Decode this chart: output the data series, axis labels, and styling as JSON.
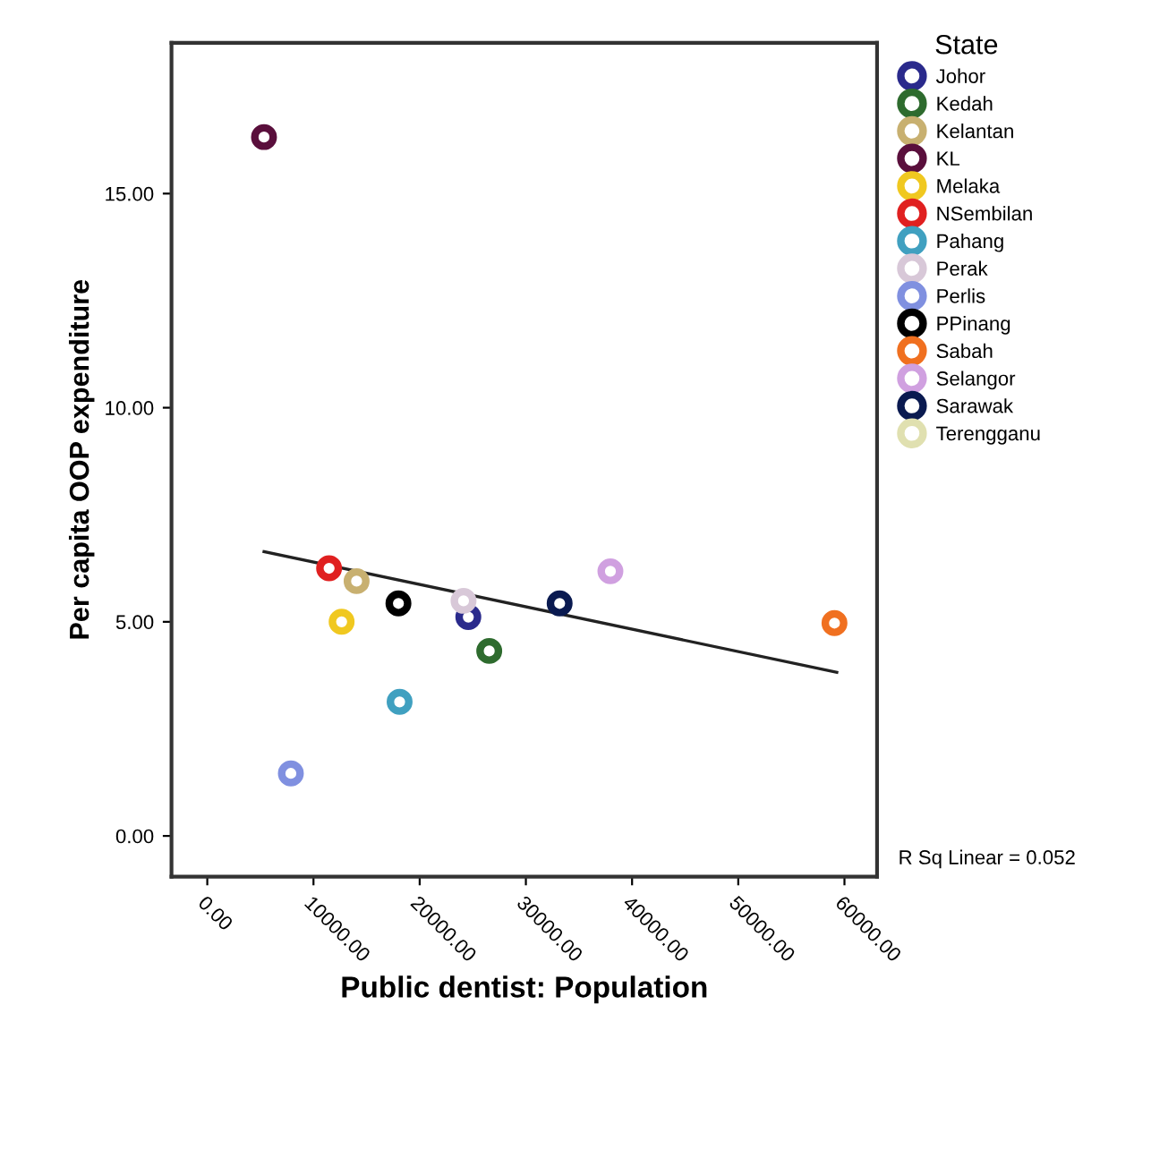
{
  "chart_data": {
    "type": "scatter",
    "xlabel": "Public dentist: Population",
    "ylabel": "Per capita OOP expenditure",
    "legend_title": "State",
    "xlim": [
      -3370,
      63070
    ],
    "ylim": [
      -0.95,
      18.52
    ],
    "xticks": [
      {
        "value": 0,
        "label": "0.00"
      },
      {
        "value": 10000,
        "label": "10000.00"
      },
      {
        "value": 20000,
        "label": "20000.00"
      },
      {
        "value": 30000,
        "label": "30000.00"
      },
      {
        "value": 40000,
        "label": "40000.00"
      },
      {
        "value": 50000,
        "label": "50000.00"
      },
      {
        "value": 60000,
        "label": "60000.00"
      }
    ],
    "yticks": [
      {
        "value": 0,
        "label": "0.00"
      },
      {
        "value": 5,
        "label": "5.00"
      },
      {
        "value": 10,
        "label": "10.00"
      },
      {
        "value": 15,
        "label": "15.00"
      }
    ],
    "marker": "circle",
    "grid": false,
    "legend": "right",
    "series": [
      {
        "name": "Johor",
        "color": "#2a2a8c",
        "x": [
          24580
        ],
        "values": [
          5.11
        ]
      },
      {
        "name": "Kedah",
        "color": "#2e6b2e",
        "x": [
          26550
        ],
        "values": [
          4.32
        ]
      },
      {
        "name": "Kelantan",
        "color": "#c8b070",
        "x": [
          14060
        ],
        "values": [
          5.95
        ]
      },
      {
        "name": "KL",
        "color": "#5a0f3c",
        "x": [
          5340
        ],
        "values": [
          16.32
        ]
      },
      {
        "name": "Melaka",
        "color": "#f0c820",
        "x": [
          12650
        ],
        "values": [
          5.0
        ]
      },
      {
        "name": "NSembilan",
        "color": "#e02020",
        "x": [
          11470
        ],
        "values": [
          6.25
        ]
      },
      {
        "name": "Pahang",
        "color": "#40a0c0",
        "x": [
          18110
        ],
        "values": [
          3.13
        ]
      },
      {
        "name": "Perak",
        "color": "#d8c8d8",
        "x": [
          24130
        ],
        "values": [
          5.49
        ]
      },
      {
        "name": "Perlis",
        "color": "#8090e0",
        "x": [
          7870
        ],
        "values": [
          1.46
        ]
      },
      {
        "name": "PPinang",
        "color": "#000000",
        "x": [
          18000
        ],
        "values": [
          5.43
        ]
      },
      {
        "name": "Sabah",
        "color": "#f07020",
        "x": [
          59060
        ],
        "values": [
          4.97
        ]
      },
      {
        "name": "Selangor",
        "color": "#d0a0e0",
        "x": [
          37960
        ],
        "values": [
          6.18
        ]
      },
      {
        "name": "Sarawak",
        "color": "#0a1a50",
        "x": [
          33180
        ],
        "values": [
          5.43
        ]
      },
      {
        "name": "Terengganu",
        "color": "#e0e0b0",
        "x": [
          null
        ],
        "values": [
          null
        ]
      },
      {
        "type": "line",
        "color": "#222222",
        "x": [
          5340,
          59280
        ],
        "values": [
          6.64,
          3.82
        ],
        "marker": "none"
      }
    ],
    "annotations": [
      "R Sq Linear = 0.052"
    ]
  }
}
